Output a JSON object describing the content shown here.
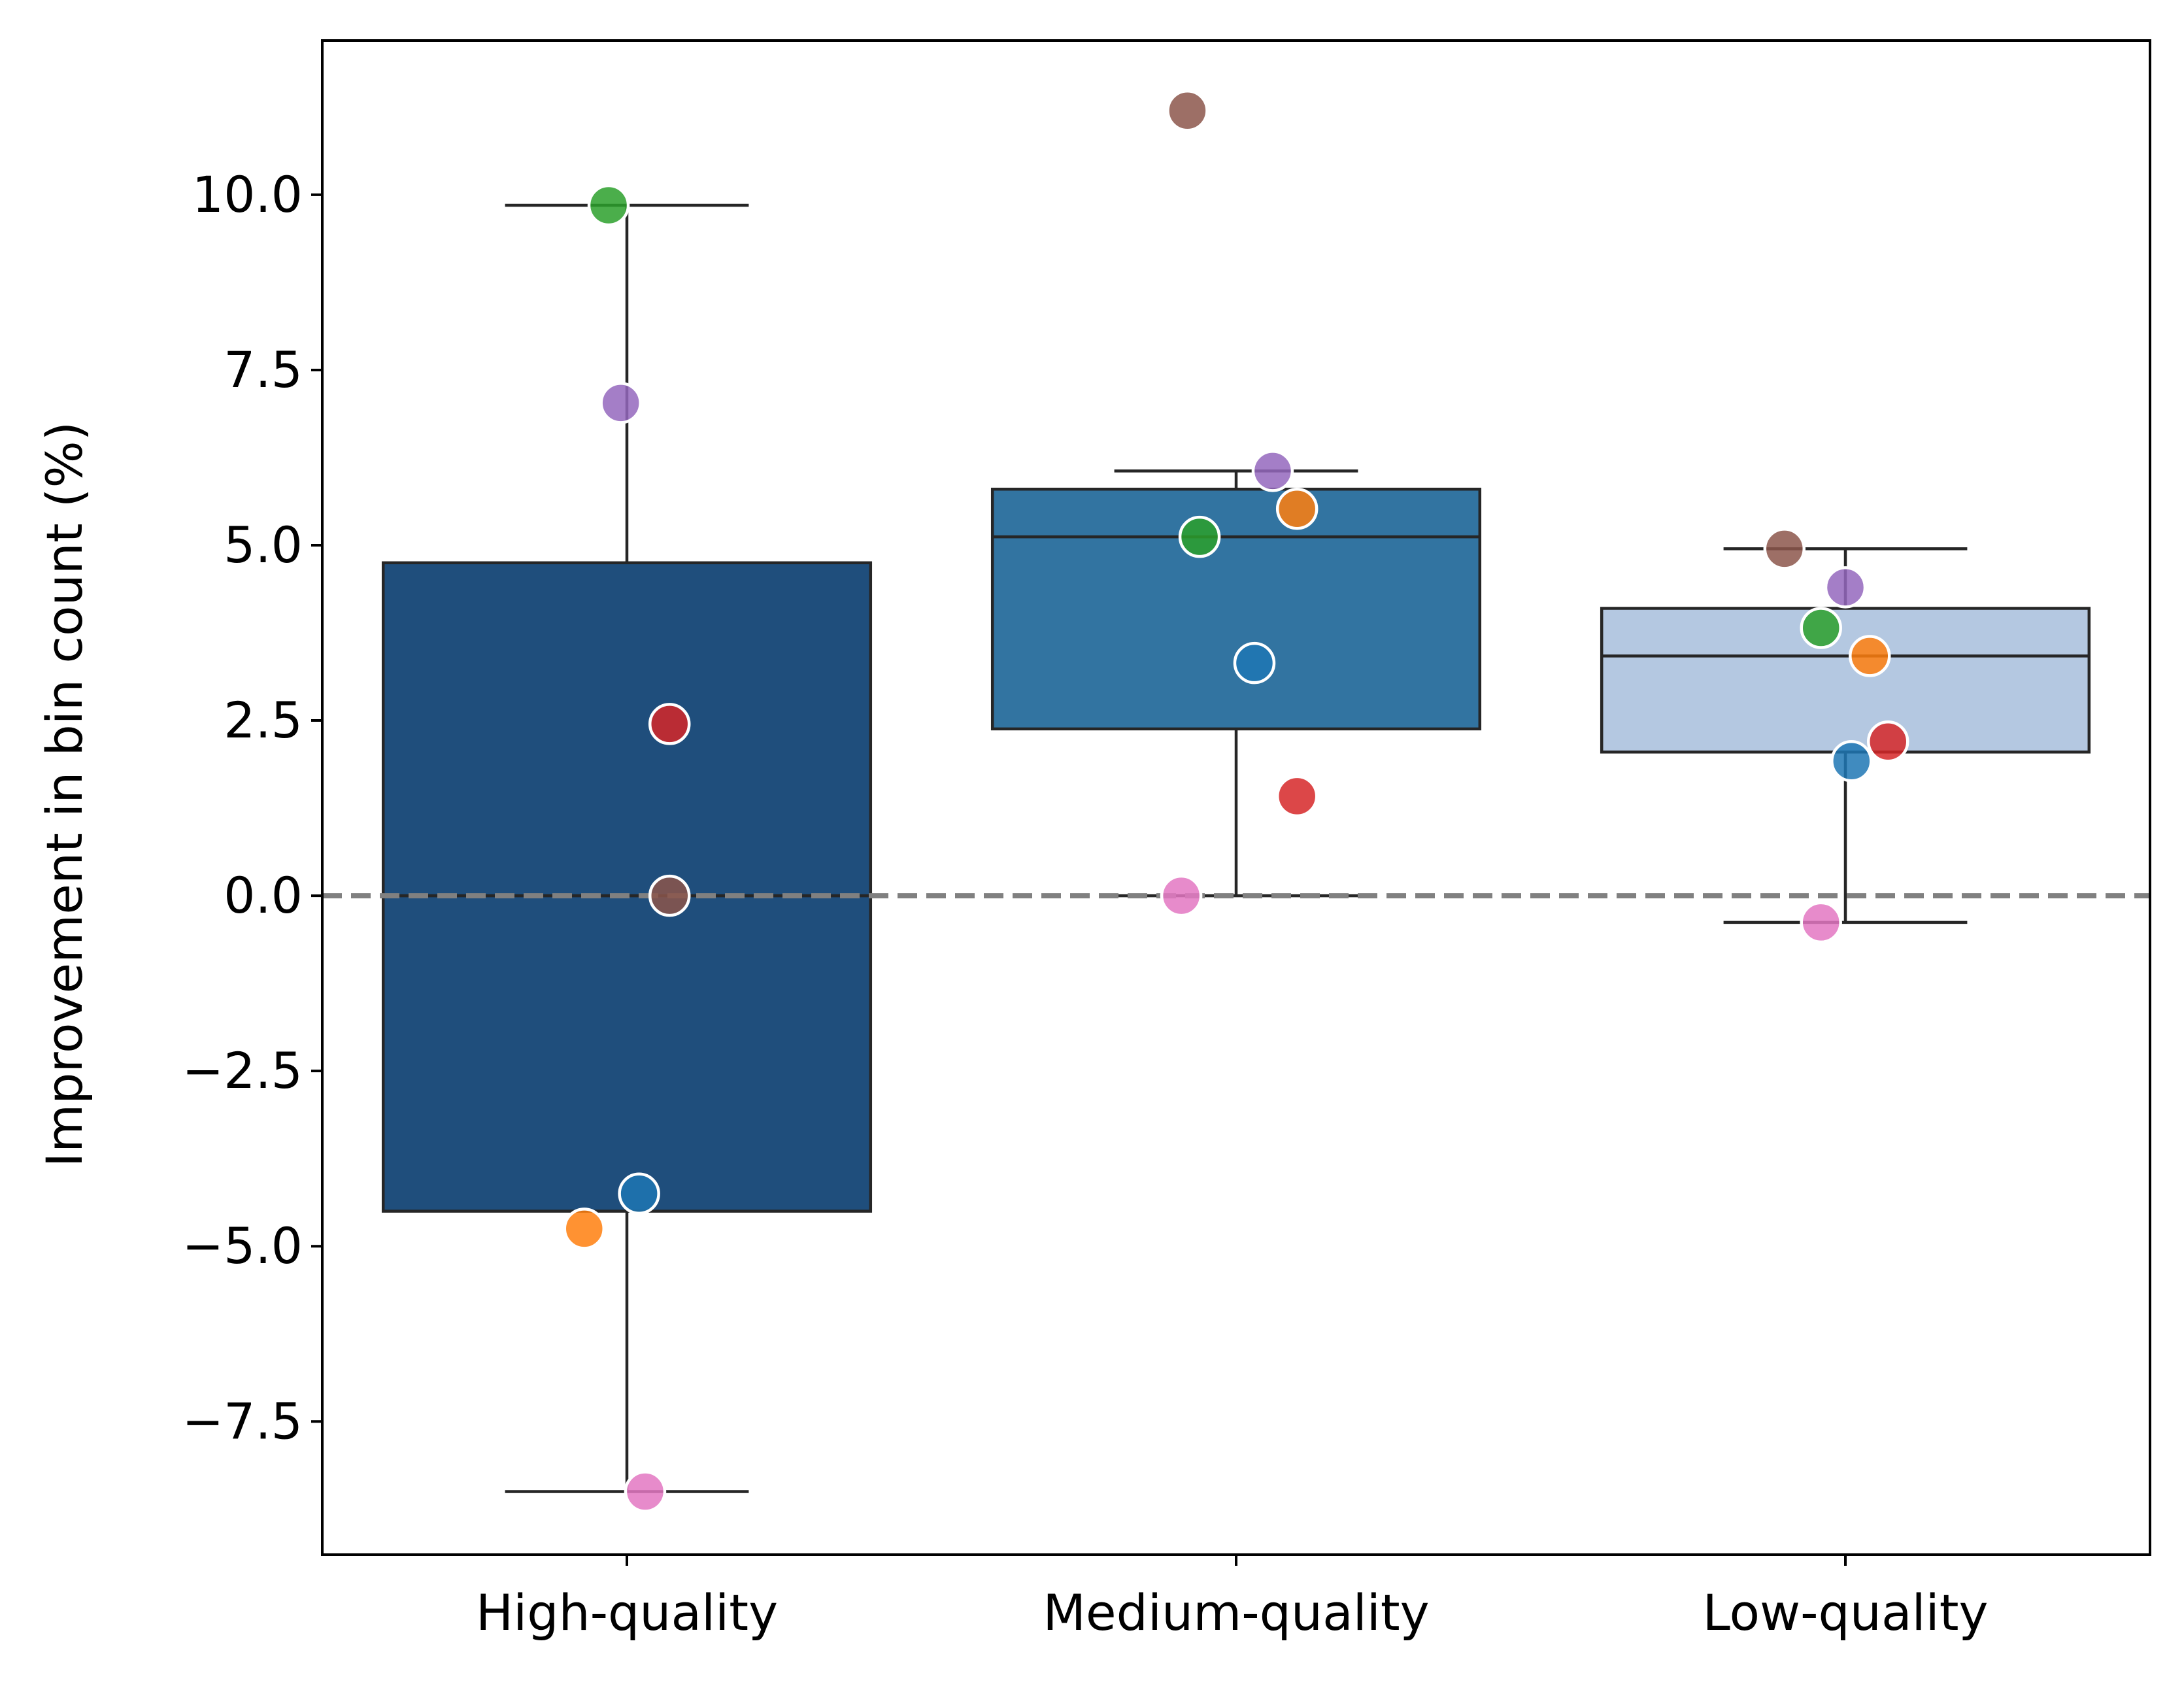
{
  "chart_data": {
    "type": "box",
    "title": "",
    "xlabel": "",
    "ylabel": "Improvement in bin count (%)",
    "ylim": [
      -9.4,
      12.2
    ],
    "yticks": [
      -7.5,
      -5.0,
      -2.5,
      0.0,
      2.5,
      5.0,
      7.5,
      10.0
    ],
    "ytick_labels": [
      "−7.5",
      "−5.0",
      "−2.5",
      "0.0",
      "2.5",
      "5.0",
      "7.5",
      "10.0"
    ],
    "categories": [
      "High-quality",
      "Medium-quality",
      "Low-quality"
    ],
    "reference_line": {
      "y": 0,
      "style": "dashed",
      "color": "#808080"
    },
    "grid": false,
    "legend": "none",
    "boxes": [
      {
        "category": "High-quality",
        "whisker_low": -8.5,
        "q1": -4.5,
        "median": 0.0,
        "q3": 4.75,
        "whisker_high": 9.85,
        "color": "#1f4e7c"
      },
      {
        "category": "Medium-quality",
        "whisker_low": 0.0,
        "q1": 2.38,
        "median": 5.12,
        "q3": 5.8,
        "whisker_high": 6.06,
        "color": "#3274a1"
      },
      {
        "category": "Low-quality",
        "whisker_low": -0.38,
        "q1": 2.05,
        "median": 3.42,
        "q3": 4.1,
        "whisker_high": 4.95,
        "color": "#b4c8e1"
      }
    ],
    "points": [
      {
        "category": "High-quality",
        "y": 9.85,
        "offset": -0.03,
        "color": "#2ca02c"
      },
      {
        "category": "High-quality",
        "y": 7.03,
        "offset": -0.01,
        "color": "#9467bd"
      },
      {
        "category": "High-quality",
        "y": 2.45,
        "offset": 0.07,
        "color": "#d62728"
      },
      {
        "category": "High-quality",
        "y": 0.0,
        "offset": 0.07,
        "color": "#8c564b"
      },
      {
        "category": "High-quality",
        "y": -4.25,
        "offset": 0.02,
        "color": "#1f77b4"
      },
      {
        "category": "High-quality",
        "y": -4.75,
        "offset": -0.07,
        "color": "#ff7f0e"
      },
      {
        "category": "High-quality",
        "y": -8.5,
        "offset": 0.03,
        "color": "#e377c2"
      },
      {
        "category": "Medium-quality",
        "y": 11.2,
        "offset": -0.08,
        "color": "#8c564b"
      },
      {
        "category": "Medium-quality",
        "y": 6.06,
        "offset": 0.06,
        "color": "#9467bd"
      },
      {
        "category": "Medium-quality",
        "y": 5.52,
        "offset": 0.1,
        "color": "#ff7f0e"
      },
      {
        "category": "Medium-quality",
        "y": 5.12,
        "offset": -0.06,
        "color": "#2ca02c"
      },
      {
        "category": "Medium-quality",
        "y": 3.32,
        "offset": 0.03,
        "color": "#1f77b4"
      },
      {
        "category": "Medium-quality",
        "y": 1.42,
        "offset": 0.1,
        "color": "#d62728"
      },
      {
        "category": "Medium-quality",
        "y": 0.0,
        "offset": -0.09,
        "color": "#e377c2"
      },
      {
        "category": "Low-quality",
        "y": 4.95,
        "offset": -0.1,
        "color": "#8c564b"
      },
      {
        "category": "Low-quality",
        "y": 4.4,
        "offset": 0.0,
        "color": "#9467bd"
      },
      {
        "category": "Low-quality",
        "y": 3.82,
        "offset": -0.04,
        "color": "#2ca02c"
      },
      {
        "category": "Low-quality",
        "y": 3.42,
        "offset": 0.04,
        "color": "#ff7f0e"
      },
      {
        "category": "Low-quality",
        "y": 2.2,
        "offset": 0.07,
        "color": "#d62728"
      },
      {
        "category": "Low-quality",
        "y": 1.92,
        "offset": 0.01,
        "color": "#1f77b4"
      },
      {
        "category": "Low-quality",
        "y": -0.38,
        "offset": -0.04,
        "color": "#e377c2"
      }
    ]
  }
}
